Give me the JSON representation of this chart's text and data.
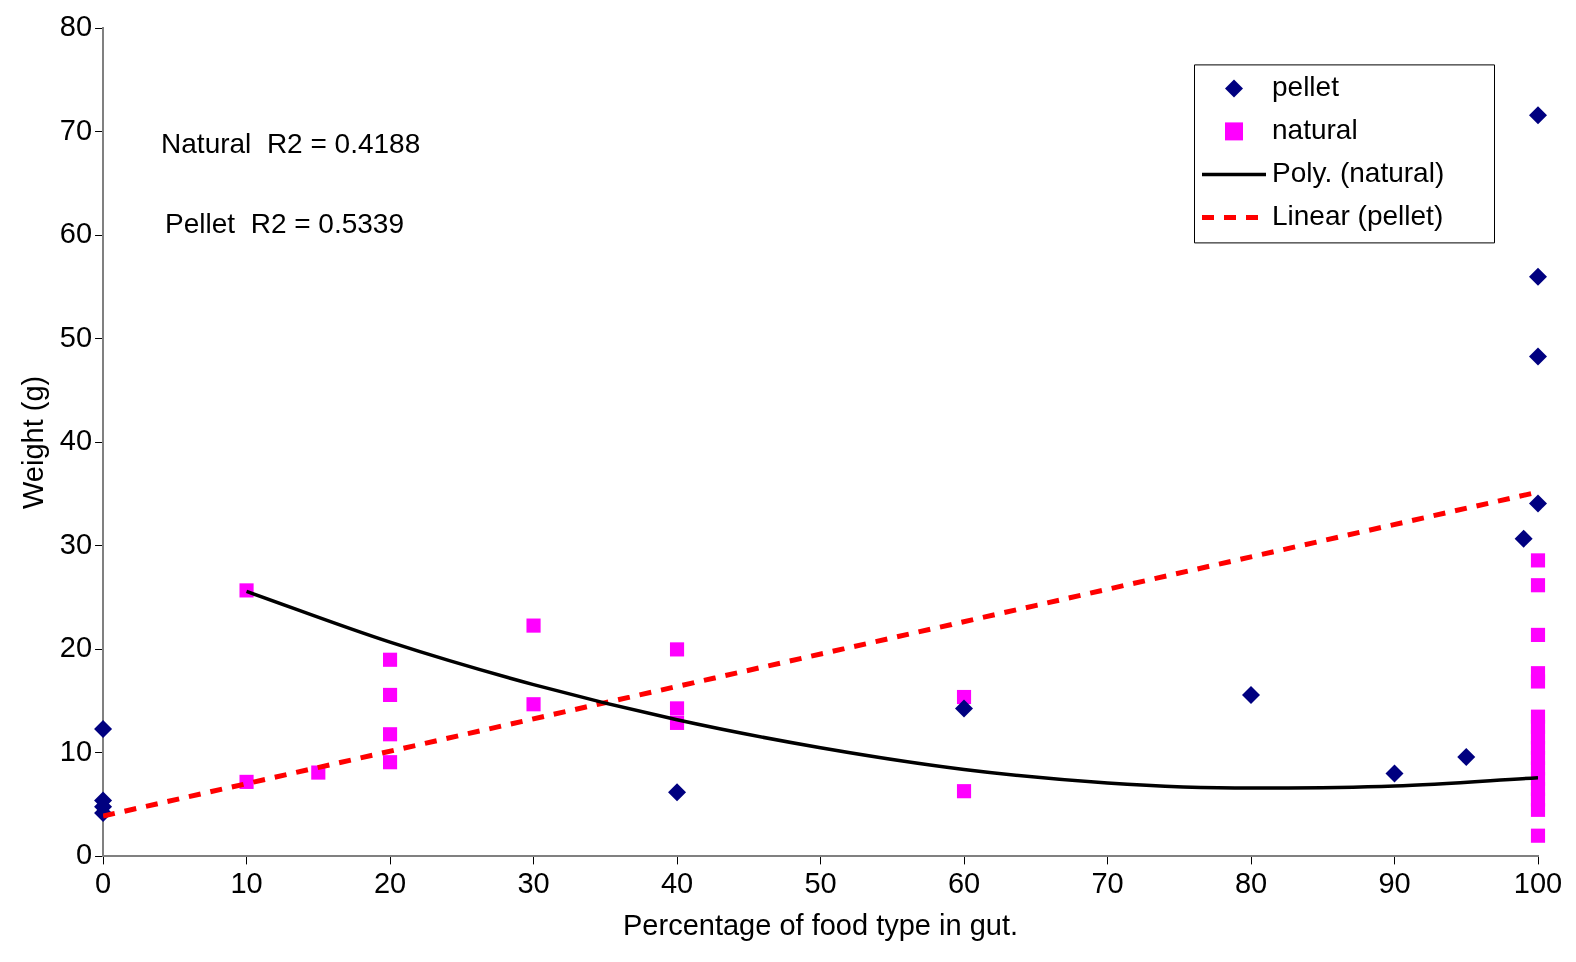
{
  "chart_data": {
    "type": "scatter",
    "xlabel": "Percentage of food type in gut.",
    "ylabel": "Weight (g)",
    "xlim": [
      0,
      100
    ],
    "xticks": [
      0,
      10,
      20,
      30,
      40,
      50,
      60,
      70,
      80,
      90,
      100
    ],
    "ylim": [
      0,
      80
    ],
    "yticks": [
      0,
      10,
      20,
      30,
      40,
      50,
      60,
      70,
      80
    ],
    "grid": false,
    "legend": "top right",
    "annotations": [
      "Natural  R2 = 0.4188",
      "Pellet  R2 = 0.5339"
    ],
    "series": [
      {
        "name": "pellet",
        "marker": "diamond",
        "color": "#000080",
        "x": [
          0,
          0,
          0,
          0,
          40,
          60,
          80,
          90,
          95,
          99,
          100,
          100,
          100,
          100
        ],
        "values": [
          12.3,
          5.4,
          4.8,
          4.2,
          6.2,
          14.3,
          15.6,
          8.0,
          9.6,
          30.7,
          34.1,
          48.3,
          56.0,
          71.6
        ]
      },
      {
        "name": "natural",
        "marker": "square",
        "color": "#ff00ff",
        "x": [
          10,
          10,
          15,
          20,
          20,
          20,
          20,
          30,
          30,
          40,
          40,
          40,
          60,
          60,
          100,
          100,
          100,
          100,
          100,
          100,
          100,
          100,
          100,
          100,
          100,
          100,
          100,
          100,
          100,
          100
        ],
        "values": [
          25.7,
          7.2,
          8.1,
          19.0,
          15.6,
          11.8,
          9.1,
          22.3,
          14.7,
          20.0,
          14.3,
          12.9,
          15.4,
          6.3,
          28.6,
          26.2,
          21.4,
          17.7,
          16.9,
          13.5,
          12.5,
          11.5,
          10.5,
          9.5,
          8.5,
          7.5,
          6.5,
          5.5,
          4.5,
          2.0
        ]
      },
      {
        "name": "Poly. (natural)",
        "type": "line",
        "line_style": "solid",
        "color": "#000000",
        "x": [
          10,
          20,
          30,
          40,
          50,
          60,
          70,
          80,
          90,
          100
        ],
        "values": [
          25.6,
          20.7,
          16.6,
          13.2,
          10.5,
          8.4,
          7.1,
          6.6,
          6.8,
          7.6
        ]
      },
      {
        "name": "Linear (pellet)",
        "type": "line",
        "line_style": "dashed",
        "color": "#ff0000",
        "x": [
          0,
          100
        ],
        "values": [
          3.9,
          35.2
        ]
      }
    ]
  }
}
